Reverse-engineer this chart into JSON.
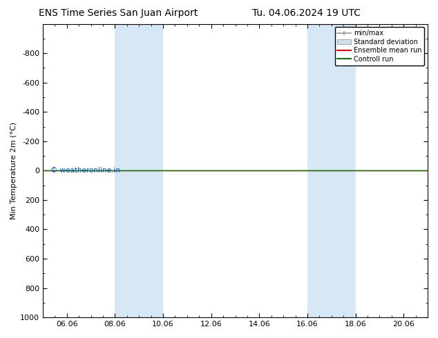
{
  "title": "ENS Time Series San Juan Airport",
  "title2": "Tu. 04.06.2024 19 UTC",
  "ylabel": "Min Temperature 2m (°C)",
  "ylim": [
    1000,
    -1000
  ],
  "yticks": [
    1000,
    800,
    600,
    400,
    200,
    0,
    -200,
    -400,
    -600,
    -800
  ],
  "ytick_labels": [
    "1000",
    "800",
    "600",
    "400",
    "200",
    "0",
    "-200",
    "-400",
    "-600",
    "-800"
  ],
  "x_min": 0,
  "x_max": 16,
  "xtick_positions": [
    1.0,
    3.0,
    5.0,
    7.0,
    9.0,
    11.0,
    13.0,
    15.0
  ],
  "xtick_labels": [
    "06.06",
    "08.06",
    "10.06",
    "12.06",
    "14.06",
    "16.06",
    "18.06",
    "20.06"
  ],
  "background_color": "#ffffff",
  "plot_bg_color": "#ffffff",
  "shaded_regions": [
    {
      "x_start": 3.0,
      "x_end": 5.0,
      "color": "#d6e8f5"
    },
    {
      "x_start": 11.0,
      "x_end": 13.0,
      "color": "#d6e8f5"
    }
  ],
  "hline_y": 0,
  "hline_color_red": "#ff0000",
  "hline_color_green": "#007700",
  "watermark": "© weatheronline.in",
  "watermark_color": "#0055cc",
  "legend_labels": [
    "min/max",
    "Standard deviation",
    "Ensemble mean run",
    "Controll run"
  ],
  "legend_gray": "#999999",
  "legend_blue": "#cce0f0",
  "border_color": "#000000",
  "title_fontsize": 10,
  "tick_fontsize": 8,
  "ylabel_fontsize": 8
}
